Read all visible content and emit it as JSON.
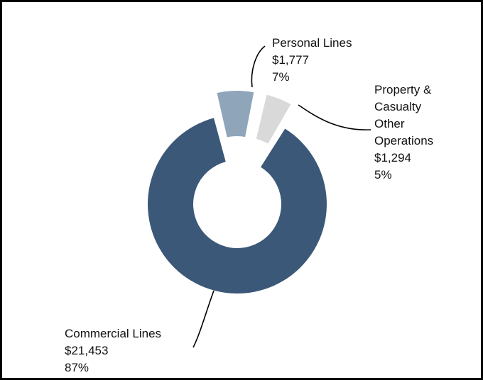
{
  "chart_data": {
    "type": "pie",
    "variant": "donut",
    "title": "",
    "slices": [
      {
        "label": "Personal Lines",
        "value_text": "$1,777",
        "value": 1777,
        "pct_text": "7%",
        "pct": 7,
        "color": "#8fa5ba",
        "exploded": true
      },
      {
        "label_lines": [
          "Property &",
          "Casualty",
          "Other",
          "Operations"
        ],
        "value_text": "$1,294",
        "value": 1294,
        "pct_text": "5%",
        "pct": 5,
        "color": "#d9d9d9",
        "exploded": true
      },
      {
        "label": "Commercial Lines",
        "value_text": "$21,453",
        "value": 21453,
        "pct_text": "87%",
        "pct": 87,
        "color": "#3b5878",
        "exploded": false
      }
    ],
    "legend": "none"
  }
}
